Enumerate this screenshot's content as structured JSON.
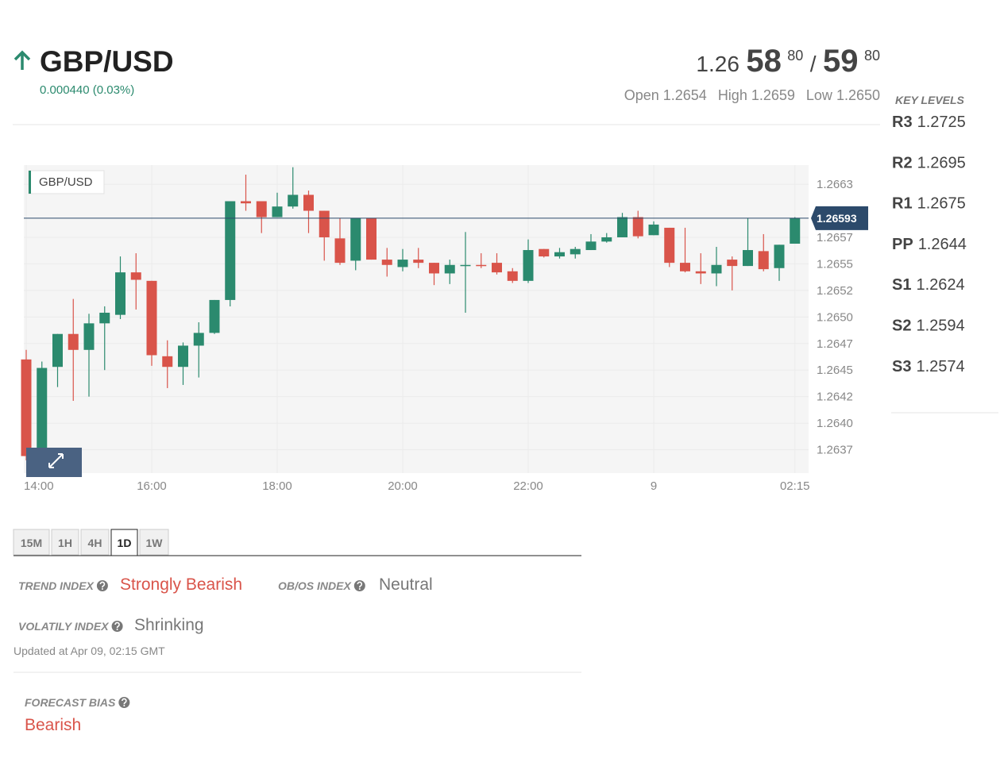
{
  "header": {
    "symbol": "GBP/USD",
    "change": "0.000440 (0.03%)",
    "bid": {
      "big": "1.26",
      "pips": "58",
      "fraction": "80"
    },
    "separator": "/",
    "ask": {
      "pips": "59",
      "fraction": "80"
    },
    "ohl": [
      {
        "label": "Open",
        "value": "1.2654"
      },
      {
        "label": "High",
        "value": "1.2659"
      },
      {
        "label": "Low",
        "value": "1.2650"
      }
    ]
  },
  "key_levels": {
    "title": "KEY LEVELS",
    "levels": [
      {
        "name": "R3",
        "value": "1.2725"
      },
      {
        "name": "R2",
        "value": "1.2695"
      },
      {
        "name": "R1",
        "value": "1.2675"
      },
      {
        "name": "PP",
        "value": "1.2644"
      },
      {
        "name": "S1",
        "value": "1.2624"
      },
      {
        "name": "S2",
        "value": "1.2594"
      },
      {
        "name": "S3",
        "value": "1.2574"
      }
    ]
  },
  "chart_data": {
    "type": "candlestick",
    "title": "GBP/USD",
    "x": [
      "14:00",
      "14:15",
      "14:30",
      "14:45",
      "15:00",
      "15:15",
      "15:30",
      "15:45",
      "16:00",
      "16:15",
      "16:30",
      "16:45",
      "17:00",
      "17:15",
      "17:30",
      "17:45",
      "18:00",
      "18:15",
      "18:30",
      "18:45",
      "19:00",
      "19:15",
      "19:30",
      "19:45",
      "20:00",
      "20:15",
      "20:30",
      "20:45",
      "21:00",
      "21:15",
      "21:30",
      "21:45",
      "22:00",
      "22:15",
      "22:30",
      "22:45",
      "23:00",
      "23:15",
      "23:30",
      "23:45",
      "00:00",
      "00:15",
      "00:30",
      "00:45",
      "01:00",
      "01:15",
      "01:30",
      "01:45",
      "02:00",
      "02:15"
    ],
    "open": [
      1.2646,
      1.26372,
      1.26453,
      1.26484,
      1.26469,
      1.26494,
      1.26502,
      1.26542,
      1.26534,
      1.26463,
      1.26453,
      1.26473,
      1.26485,
      1.26516,
      1.26609,
      1.26609,
      1.26594,
      1.26604,
      1.26615,
      1.266,
      1.26574,
      1.26553,
      1.26593,
      1.26554,
      1.26547,
      1.26554,
      1.26551,
      1.26541,
      1.26548,
      1.26549,
      1.26551,
      1.26543,
      1.26534,
      1.26564,
      1.26557,
      1.26559,
      1.26563,
      1.26571,
      1.26575,
      1.26594,
      1.26577,
      1.26584,
      1.26551,
      1.26543,
      1.26541,
      1.26554,
      1.26548,
      1.26562,
      1.26546,
      1.26569
    ],
    "high": [
      1.26469,
      1.26458,
      1.26484,
      1.26517,
      1.26503,
      1.2651,
      1.26557,
      1.2656,
      1.26534,
      1.26478,
      1.26476,
      1.26495,
      1.26516,
      1.26609,
      1.26634,
      1.26609,
      1.26617,
      1.26641,
      1.26619,
      1.266,
      1.26593,
      1.26593,
      1.26593,
      1.26565,
      1.26564,
      1.26565,
      1.26551,
      1.26554,
      1.2658,
      1.2656,
      1.2656,
      1.26546,
      1.26573,
      1.26564,
      1.26565,
      1.26566,
      1.26578,
      1.26579,
      1.26598,
      1.266,
      1.2659,
      1.26584,
      1.26584,
      1.2656,
      1.26566,
      1.26557,
      1.26593,
      1.26578,
      1.26568,
      1.26594
    ],
    "low": [
      1.26365,
      1.26355,
      1.26434,
      1.26421,
      1.26425,
      1.2645,
      1.26498,
      1.26507,
      1.26454,
      1.26433,
      1.26436,
      1.26443,
      1.26484,
      1.2651,
      1.266,
      1.26579,
      1.26594,
      1.26602,
      1.26579,
      1.26553,
      1.26549,
      1.26544,
      1.26554,
      1.26538,
      1.26543,
      1.26546,
      1.2653,
      1.26531,
      1.26504,
      1.26546,
      1.2654,
      1.26532,
      1.26532,
      1.26556,
      1.26555,
      1.26555,
      1.26563,
      1.2657,
      1.26575,
      1.26574,
      1.26577,
      1.26547,
      1.26542,
      1.26531,
      1.26529,
      1.26525,
      1.26548,
      1.26543,
      1.26534,
      1.26569
    ],
    "close": [
      1.26369,
      1.26452,
      1.26484,
      1.26469,
      1.26494,
      1.26504,
      1.26542,
      1.26535,
      1.26464,
      1.26453,
      1.26473,
      1.26485,
      1.26516,
      1.26609,
      1.26607,
      1.26594,
      1.26604,
      1.26615,
      1.266,
      1.26575,
      1.26551,
      1.26593,
      1.26554,
      1.26549,
      1.26554,
      1.26551,
      1.26541,
      1.26549,
      1.26549,
      1.26548,
      1.26542,
      1.26534,
      1.26563,
      1.26557,
      1.26561,
      1.26564,
      1.26571,
      1.26575,
      1.26594,
      1.26576,
      1.26587,
      1.26551,
      1.26543,
      1.26541,
      1.26549,
      1.26548,
      1.26563,
      1.26545,
      1.26568,
      1.26593
    ],
    "up_color": "#2b8a6e",
    "down_color": "#d9544a",
    "ylim": [
      1.26353,
      1.26643
    ],
    "yticks": [
      {
        "value": 1.26625,
        "label": "1.2663"
      },
      {
        "value": 1.26575,
        "label": "1.2657"
      },
      1.2655,
      {
        "value": 1.26525,
        "label": "1.2652"
      },
      {
        "value": 1.265,
        "label": "1.2650"
      },
      {
        "value": 1.26475,
        "label": "1.2647"
      },
      1.2645,
      {
        "value": 1.26425,
        "label": "1.2642"
      },
      {
        "value": 1.264,
        "label": "1.2640"
      },
      {
        "value": 1.26375,
        "label": "1.2637"
      }
    ],
    "xticks": [
      "14:00",
      "16:00",
      "18:00",
      "20:00",
      "22:00",
      {
        "value": "00:00",
        "label": "9"
      },
      "02:15"
    ],
    "current_price": 1.26593,
    "current_price_color": "#2c4a6b",
    "grid": true
  },
  "timeframes": [
    {
      "label": "15M",
      "active": false
    },
    {
      "label": "1H",
      "active": false
    },
    {
      "label": "4H",
      "active": false
    },
    {
      "label": "1D",
      "active": true
    },
    {
      "label": "1W",
      "active": false
    }
  ],
  "indicators": [
    {
      "label": "TREND INDEX",
      "value": "Strongly Bearish",
      "color": "#d9544a"
    },
    {
      "label": "OB/OS INDEX",
      "value": "Neutral",
      "color": "#777777"
    },
    {
      "label": "VOLATILY INDEX",
      "value": "Shrinking",
      "color": "#777777"
    }
  ],
  "updated": "Updated at Apr 09, 02:15 GMT",
  "forecast": {
    "label": "FORECAST BIAS",
    "value": "Bearish",
    "color": "#d9544a"
  }
}
